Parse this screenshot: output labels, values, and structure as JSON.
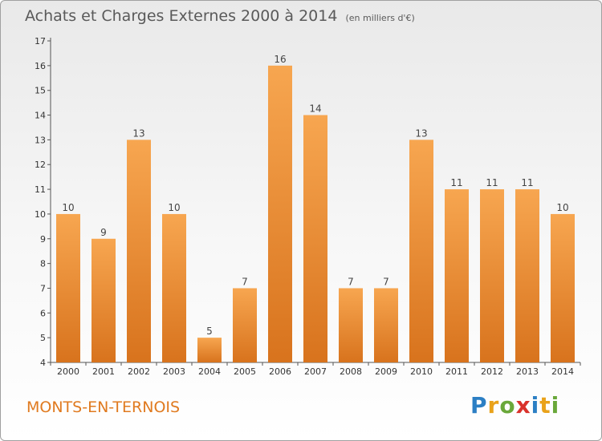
{
  "header": {
    "title": "Achats et Charges Externes 2000 à 2014",
    "unit": "(en milliers d'€)"
  },
  "footer": {
    "commune": "MONTS-EN-TERNOIS",
    "brand": "Proxiti",
    "brand_letters": [
      {
        "char": "P",
        "color": "#2c7fc4"
      },
      {
        "char": "r",
        "color": "#e9a21a"
      },
      {
        "char": "o",
        "color": "#6aa83a"
      },
      {
        "char": "x",
        "color": "#d9322b"
      },
      {
        "char": "i",
        "color": "#2c7fc4"
      },
      {
        "char": "t",
        "color": "#e9a21a"
      },
      {
        "char": "i",
        "color": "#6aa83a"
      }
    ]
  },
  "chart_data": {
    "type": "bar",
    "title": "Achats et Charges Externes 2000 à 2014",
    "subtitle": "(en milliers d'€)",
    "xlabel": "",
    "ylabel": "",
    "categories": [
      "2000",
      "2001",
      "2002",
      "2003",
      "2004",
      "2005",
      "2006",
      "2007",
      "2008",
      "2009",
      "2010",
      "2011",
      "2012",
      "2013",
      "2014"
    ],
    "values": [
      10,
      9,
      13,
      10,
      5,
      7,
      16,
      14,
      7,
      7,
      13,
      11,
      11,
      11,
      10
    ],
    "ylim": [
      4,
      17
    ],
    "yticks": [
      4,
      5,
      6,
      7,
      8,
      9,
      10,
      11,
      12,
      13,
      14,
      15,
      16,
      17
    ],
    "grid": false,
    "legend": "none",
    "bar_color": "#f0922f"
  }
}
